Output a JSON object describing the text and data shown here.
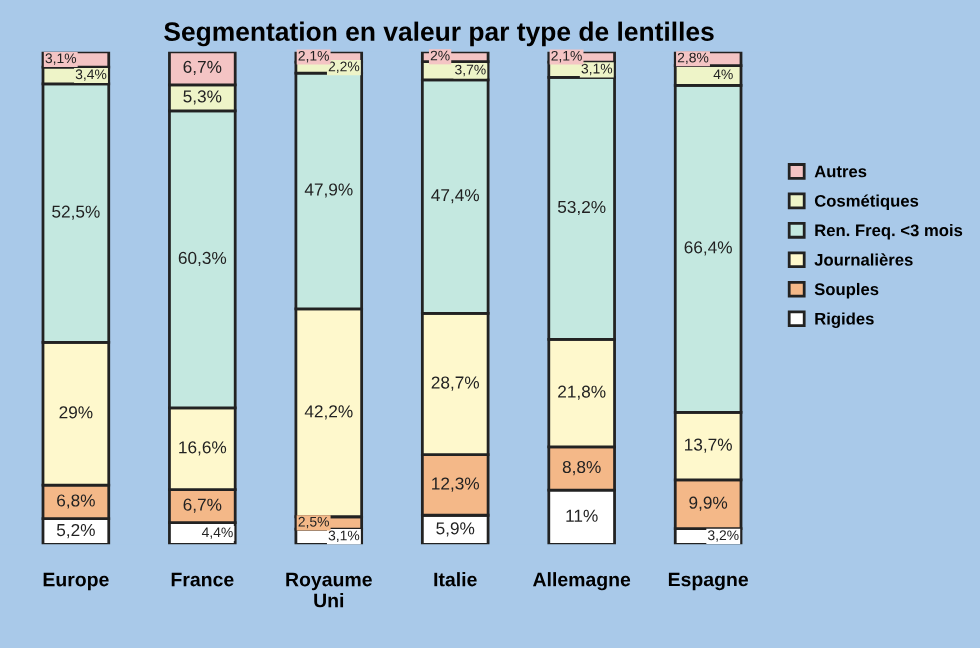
{
  "chart_data": {
    "type": "bar",
    "title": "Segmentation en valeur par type de lentilles",
    "stacked": true,
    "legend": "right",
    "grid": false,
    "categories": [
      "Europe",
      "France",
      "Royaume\nUni",
      "Italie",
      "Allemagne",
      "Espagne"
    ],
    "series": [
      {
        "name": "Rigides",
        "color": "#ffffff",
        "values": [
          5.2,
          4.4,
          3.1,
          5.9,
          11,
          3.2
        ],
        "value_labels": [
          "5,2%",
          "4,4%",
          "3,1%",
          "5,9%",
          "11%",
          "3,2%"
        ]
      },
      {
        "name": "Souples",
        "color": "#f4b888",
        "values": [
          6.8,
          6.7,
          2.5,
          12.3,
          8.8,
          9.9
        ],
        "value_labels": [
          "6,8%",
          "6,7%",
          "2,5%",
          "12,3%",
          "8,8%",
          "9,9%"
        ]
      },
      {
        "name": "Journalières",
        "color": "#fef8cc",
        "values": [
          29,
          16.6,
          42.2,
          28.7,
          21.8,
          13.7
        ],
        "value_labels": [
          "29%",
          "16,6%",
          "42,2%",
          "28,7%",
          "21,8%",
          "13,7%"
        ]
      },
      {
        "name": "Ren. Freq. <3 mois",
        "color": "#c4e8e0",
        "values": [
          52.5,
          60.3,
          47.9,
          47.4,
          53.2,
          66.4
        ],
        "value_labels": [
          "52,5%",
          "60,3%",
          "47,9%",
          "47,4%",
          "53,2%",
          "66,4%"
        ]
      },
      {
        "name": "Cosmétiques",
        "color": "#eef4c8",
        "values": [
          3.4,
          5.3,
          2.2,
          3.7,
          3.1,
          4
        ],
        "value_labels": [
          "3,4%",
          "5,3%",
          "2,2%",
          "3,7%",
          "3,1%",
          "4%"
        ]
      },
      {
        "name": "Autres",
        "color": "#f4c4c4",
        "values": [
          3.1,
          6.7,
          2.1,
          2,
          2.1,
          2.8
        ],
        "value_labels": [
          "3,1%",
          "6,7%",
          "2,1%",
          "2%",
          "2,1%",
          "2,8%"
        ]
      }
    ]
  }
}
